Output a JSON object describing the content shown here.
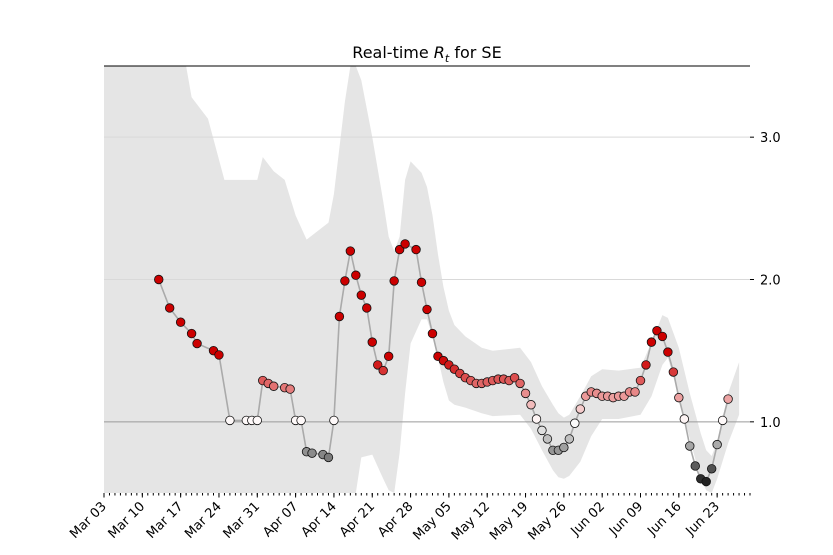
{
  "chart_data": {
    "type": "scatter",
    "title_prefix": "Real-time ",
    "title_symbol": "R",
    "title_subscript": "t",
    "title_suffix": " for SE",
    "xlabel": "",
    "ylabel": "",
    "start_date": "2020-03-03",
    "x_range": [
      "Mar 03",
      "Jun 29"
    ],
    "ylim": [
      0.5,
      3.5
    ],
    "yticks": [
      1.0,
      2.0,
      3.0
    ],
    "ytick_labels": [
      "1.0",
      "2.0",
      "3.0"
    ],
    "xtick_labels": [
      "Mar 03",
      "Mar 10",
      "Mar 17",
      "Mar 24",
      "Mar 31",
      "Apr 07",
      "Apr 14",
      "Apr 21",
      "Apr 28",
      "May 05",
      "May 12",
      "May 19",
      "May 26",
      "Jun 02",
      "Jun 09",
      "Jun 16",
      "Jun 23"
    ],
    "reference_line": 1.0,
    "grid": "horizontal",
    "colors": {
      "band": "#e5e5e5",
      "line": "#aaaaaa",
      "high": "#cc0000",
      "neutral": "#ffffff",
      "low": "#222222"
    },
    "band": [
      {
        "x": "Mar 03",
        "lo": 0.5,
        "hi": 3.5
      },
      {
        "x": "Mar 18",
        "lo": 0.5,
        "hi": 3.5
      },
      {
        "x": "Mar 19",
        "lo": 0.5,
        "hi": 3.28
      },
      {
        "x": "Mar 22",
        "lo": 0.5,
        "hi": 3.13
      },
      {
        "x": "Mar 25",
        "lo": 0.5,
        "hi": 2.7
      },
      {
        "x": "Mar 31",
        "lo": 0.5,
        "hi": 2.7
      },
      {
        "x": "Apr 01",
        "lo": 0.5,
        "hi": 2.86
      },
      {
        "x": "Apr 03",
        "lo": 0.5,
        "hi": 2.76
      },
      {
        "x": "Apr 05",
        "lo": 0.5,
        "hi": 2.7
      },
      {
        "x": "Apr 07",
        "lo": 0.5,
        "hi": 2.45
      },
      {
        "x": "Apr 09",
        "lo": 0.5,
        "hi": 2.28
      },
      {
        "x": "Apr 13",
        "lo": 0.5,
        "hi": 2.4
      },
      {
        "x": "Apr 14",
        "lo": 0.5,
        "hi": 2.6
      },
      {
        "x": "Apr 16",
        "lo": 0.5,
        "hi": 3.25
      },
      {
        "x": "Apr 17",
        "lo": 0.5,
        "hi": 3.5
      },
      {
        "x": "Apr 18",
        "lo": 0.5,
        "hi": 3.5
      },
      {
        "x": "Apr 19",
        "lo": 0.75,
        "hi": 3.4
      },
      {
        "x": "Apr 21",
        "lo": 0.77,
        "hi": 3.0
      },
      {
        "x": "Apr 23",
        "lo": 0.6,
        "hi": 2.55
      },
      {
        "x": "Apr 24",
        "lo": 0.52,
        "hi": 2.3
      },
      {
        "x": "Apr 25",
        "lo": 0.5,
        "hi": 2.2
      },
      {
        "x": "Apr 26",
        "lo": 0.78,
        "hi": 2.3
      },
      {
        "x": "Apr 27",
        "lo": 1.2,
        "hi": 2.7
      },
      {
        "x": "Apr 28",
        "lo": 1.55,
        "hi": 2.83
      },
      {
        "x": "Apr 30",
        "lo": 1.72,
        "hi": 2.75
      },
      {
        "x": "May 01",
        "lo": 1.72,
        "hi": 2.65
      },
      {
        "x": "May 02",
        "lo": 1.6,
        "hi": 2.45
      },
      {
        "x": "May 03",
        "lo": 1.45,
        "hi": 2.18
      },
      {
        "x": "May 04",
        "lo": 1.28,
        "hi": 1.95
      },
      {
        "x": "May 05",
        "lo": 1.15,
        "hi": 1.78
      },
      {
        "x": "May 06",
        "lo": 1.12,
        "hi": 1.68
      },
      {
        "x": "May 08",
        "lo": 1.1,
        "hi": 1.6
      },
      {
        "x": "May 11",
        "lo": 1.06,
        "hi": 1.52
      },
      {
        "x": "May 13",
        "lo": 1.04,
        "hi": 1.5
      },
      {
        "x": "May 18",
        "lo": 1.05,
        "hi": 1.52
      },
      {
        "x": "May 20",
        "lo": 0.95,
        "hi": 1.42
      },
      {
        "x": "May 22",
        "lo": 0.8,
        "hi": 1.25
      },
      {
        "x": "May 24",
        "lo": 0.66,
        "hi": 1.12
      },
      {
        "x": "May 25",
        "lo": 0.61,
        "hi": 1.06
      },
      {
        "x": "May 26",
        "lo": 0.6,
        "hi": 1.03
      },
      {
        "x": "May 27",
        "lo": 0.62,
        "hi": 1.05
      },
      {
        "x": "May 29",
        "lo": 0.72,
        "hi": 1.18
      },
      {
        "x": "May 31",
        "lo": 0.9,
        "hi": 1.32
      },
      {
        "x": "Jun 02",
        "lo": 1.02,
        "hi": 1.37
      },
      {
        "x": "Jun 05",
        "lo": 1.02,
        "hi": 1.36
      },
      {
        "x": "Jun 09",
        "lo": 1.05,
        "hi": 1.38
      },
      {
        "x": "Jun 11",
        "lo": 1.18,
        "hi": 1.56
      },
      {
        "x": "Jun 13",
        "lo": 1.4,
        "hi": 1.75
      },
      {
        "x": "Jun 14",
        "lo": 1.45,
        "hi": 1.73
      },
      {
        "x": "Jun 16",
        "lo": 1.18,
        "hi": 1.52
      },
      {
        "x": "Jun 18",
        "lo": 0.88,
        "hi": 1.2
      },
      {
        "x": "Jun 20",
        "lo": 0.6,
        "hi": 0.92
      },
      {
        "x": "Jun 21",
        "lo": 0.52,
        "hi": 0.8
      },
      {
        "x": "Jun 22",
        "lo": 0.5,
        "hi": 0.76
      },
      {
        "x": "Jun 23",
        "lo": 0.6,
        "hi": 0.86
      },
      {
        "x": "Jun 25",
        "lo": 0.85,
        "hi": 1.2
      },
      {
        "x": "Jun 27",
        "lo": 1.05,
        "hi": 1.42
      }
    ],
    "series": [
      {
        "x": "Mar 13",
        "y": 2.0
      },
      {
        "x": "Mar 15",
        "y": 1.8
      },
      {
        "x": "Mar 17",
        "y": 1.7
      },
      {
        "x": "Mar 19",
        "y": 1.62
      },
      {
        "x": "Mar 20",
        "y": 1.55
      },
      {
        "x": "Mar 23",
        "y": 1.5
      },
      {
        "x": "Mar 24",
        "y": 1.47
      },
      {
        "x": "Mar 26",
        "y": 1.01
      },
      {
        "x": "Mar 29",
        "y": 1.01
      },
      {
        "x": "Mar 30",
        "y": 1.01
      },
      {
        "x": "Mar 31",
        "y": 1.01
      },
      {
        "x": "Apr 01",
        "y": 1.29
      },
      {
        "x": "Apr 02",
        "y": 1.27
      },
      {
        "x": "Apr 03",
        "y": 1.25
      },
      {
        "x": "Apr 05",
        "y": 1.24
      },
      {
        "x": "Apr 06",
        "y": 1.23
      },
      {
        "x": "Apr 07",
        "y": 1.01
      },
      {
        "x": "Apr 08",
        "y": 1.01
      },
      {
        "x": "Apr 09",
        "y": 0.79
      },
      {
        "x": "Apr 10",
        "y": 0.78
      },
      {
        "x": "Apr 12",
        "y": 0.77
      },
      {
        "x": "Apr 13",
        "y": 0.75
      },
      {
        "x": "Apr 14",
        "y": 1.01
      },
      {
        "x": "Apr 15",
        "y": 1.74
      },
      {
        "x": "Apr 16",
        "y": 1.99
      },
      {
        "x": "Apr 17",
        "y": 2.2
      },
      {
        "x": "Apr 18",
        "y": 2.03
      },
      {
        "x": "Apr 19",
        "y": 1.89
      },
      {
        "x": "Apr 20",
        "y": 1.8
      },
      {
        "x": "Apr 21",
        "y": 1.56
      },
      {
        "x": "Apr 22",
        "y": 1.4
      },
      {
        "x": "Apr 23",
        "y": 1.36
      },
      {
        "x": "Apr 24",
        "y": 1.46
      },
      {
        "x": "Apr 25",
        "y": 1.99
      },
      {
        "x": "Apr 26",
        "y": 2.21
      },
      {
        "x": "Apr 27",
        "y": 2.25
      },
      {
        "x": "Apr 29",
        "y": 2.21
      },
      {
        "x": "Apr 30",
        "y": 1.98
      },
      {
        "x": "May 01",
        "y": 1.79
      },
      {
        "x": "May 02",
        "y": 1.62
      },
      {
        "x": "May 03",
        "y": 1.46
      },
      {
        "x": "May 04",
        "y": 1.43
      },
      {
        "x": "May 05",
        "y": 1.4
      },
      {
        "x": "May 06",
        "y": 1.37
      },
      {
        "x": "May 07",
        "y": 1.34
      },
      {
        "x": "May 08",
        "y": 1.31
      },
      {
        "x": "May 09",
        "y": 1.29
      },
      {
        "x": "May 10",
        "y": 1.27
      },
      {
        "x": "May 11",
        "y": 1.27
      },
      {
        "x": "May 12",
        "y": 1.28
      },
      {
        "x": "May 13",
        "y": 1.29
      },
      {
        "x": "May 14",
        "y": 1.3
      },
      {
        "x": "May 15",
        "y": 1.3
      },
      {
        "x": "May 16",
        "y": 1.29
      },
      {
        "x": "May 17",
        "y": 1.31
      },
      {
        "x": "May 18",
        "y": 1.27
      },
      {
        "x": "May 19",
        "y": 1.2
      },
      {
        "x": "May 20",
        "y": 1.12
      },
      {
        "x": "May 21",
        "y": 1.02
      },
      {
        "x": "May 22",
        "y": 0.94
      },
      {
        "x": "May 23",
        "y": 0.88
      },
      {
        "x": "May 24",
        "y": 0.8
      },
      {
        "x": "May 25",
        "y": 0.8
      },
      {
        "x": "May 26",
        "y": 0.82
      },
      {
        "x": "May 27",
        "y": 0.88
      },
      {
        "x": "May 28",
        "y": 0.99
      },
      {
        "x": "May 29",
        "y": 1.09
      },
      {
        "x": "May 30",
        "y": 1.18
      },
      {
        "x": "May 31",
        "y": 1.21
      },
      {
        "x": "Jun 01",
        "y": 1.2
      },
      {
        "x": "Jun 02",
        "y": 1.18
      },
      {
        "x": "Jun 03",
        "y": 1.18
      },
      {
        "x": "Jun 04",
        "y": 1.17
      },
      {
        "x": "Jun 05",
        "y": 1.18
      },
      {
        "x": "Jun 06",
        "y": 1.18
      },
      {
        "x": "Jun 07",
        "y": 1.21
      },
      {
        "x": "Jun 08",
        "y": 1.21
      },
      {
        "x": "Jun 09",
        "y": 1.29
      },
      {
        "x": "Jun 10",
        "y": 1.4
      },
      {
        "x": "Jun 11",
        "y": 1.56
      },
      {
        "x": "Jun 12",
        "y": 1.64
      },
      {
        "x": "Jun 13",
        "y": 1.6
      },
      {
        "x": "Jun 14",
        "y": 1.49
      },
      {
        "x": "Jun 15",
        "y": 1.35
      },
      {
        "x": "Jun 16",
        "y": 1.17
      },
      {
        "x": "Jun 17",
        "y": 1.02
      },
      {
        "x": "Jun 18",
        "y": 0.83
      },
      {
        "x": "Jun 19",
        "y": 0.69
      },
      {
        "x": "Jun 20",
        "y": 0.6
      },
      {
        "x": "Jun 21",
        "y": 0.58
      },
      {
        "x": "Jun 22",
        "y": 0.67
      },
      {
        "x": "Jun 23",
        "y": 0.84
      },
      {
        "x": "Jun 24",
        "y": 1.01
      },
      {
        "x": "Jun 25",
        "y": 1.16
      }
    ]
  }
}
